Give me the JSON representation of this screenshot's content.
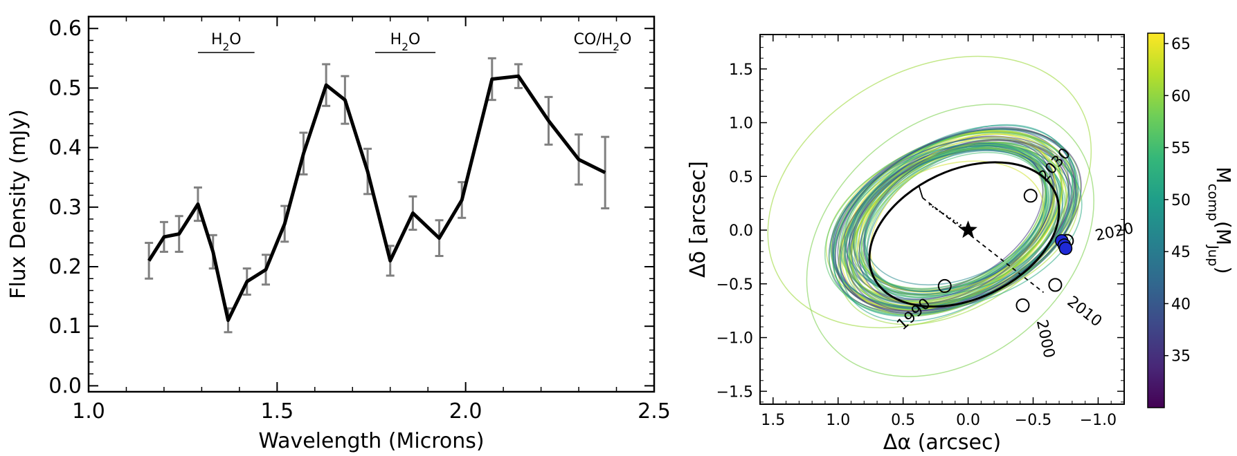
{
  "chart_data": [
    {
      "type": "line",
      "xlabel": "Wavelength (Microns)",
      "ylabel": "Flux Density (mJy)",
      "xlim": [
        1.0,
        2.5
      ],
      "ylim": [
        -0.01,
        0.62
      ],
      "xticks": [
        "1.0",
        "1.5",
        "2.0",
        "2.5"
      ],
      "yticks": [
        "0.0",
        "0.1",
        "0.2",
        "0.3",
        "0.4",
        "0.5",
        "0.6"
      ],
      "grid": false,
      "x": [
        1.16,
        1.2,
        1.24,
        1.29,
        1.33,
        1.37,
        1.42,
        1.47,
        1.52,
        1.57,
        1.63,
        1.68,
        1.74,
        1.8,
        1.86,
        1.93,
        1.99,
        2.07,
        2.14,
        2.22,
        2.3,
        2.37
      ],
      "y": [
        0.21,
        0.25,
        0.255,
        0.305,
        0.225,
        0.11,
        0.175,
        0.195,
        0.272,
        0.39,
        0.505,
        0.48,
        0.36,
        0.21,
        0.29,
        0.248,
        0.312,
        0.515,
        0.52,
        0.445,
        0.38,
        0.358
      ],
      "yerr": [
        0.03,
        0.025,
        0.03,
        0.028,
        0.028,
        0.02,
        0.022,
        0.025,
        0.03,
        0.035,
        0.035,
        0.04,
        0.038,
        0.025,
        0.028,
        0.03,
        0.03,
        0.035,
        0.02,
        0.04,
        0.042,
        0.06
      ],
      "annotations": [
        {
          "text": "H",
          "sub": "2",
          "rest": "O",
          "x0": 1.29,
          "x1": 1.44
        },
        {
          "text": "H",
          "sub": "2",
          "rest": "O",
          "x0": 1.76,
          "x1": 1.92
        },
        {
          "text": "CO/H",
          "sub": "2",
          "rest": "O",
          "x0": 2.3,
          "x1": 2.4
        }
      ],
      "line_color": "#000000",
      "errorbar_color": "#808080"
    },
    {
      "type": "scatter",
      "xlabel": "Δα (arcsec)",
      "ylabel": "Δδ [arcsec]",
      "xlim": [
        1.6,
        -1.2
      ],
      "ylim": [
        -1.62,
        1.82
      ],
      "xticks": [
        "1.5",
        "1.0",
        "0.5",
        "0.0",
        "−0.5",
        "−1.0"
      ],
      "yticks": [
        "1.5",
        "1.0",
        "0.5",
        "0.0",
        "−0.5",
        "−1.0",
        "−1.5"
      ],
      "colorbar": {
        "label_main": "M",
        "label_sub": "comp",
        "label_unit": "(M",
        "label_unit_sub": "Jup",
        "label_close": ")",
        "range": [
          30,
          66
        ],
        "ticks": [
          "35",
          "40",
          "45",
          "50",
          "55",
          "60",
          "65"
        ],
        "colormap": "viridis"
      },
      "orbit_center": [
        0.02,
        0.02
      ],
      "orbit_semi_axes": [
        0.72,
        0.66
      ],
      "orbit_rotation_deg": -25,
      "epochs": [
        {
          "label": "1990",
          "x": 0.18,
          "y": -0.52
        },
        {
          "label": "2000",
          "x": -0.42,
          "y": -0.7
        },
        {
          "label": "2010",
          "x": -0.67,
          "y": -0.51
        },
        {
          "label": "2020",
          "x": -0.76,
          "y": -0.1
        },
        {
          "label": "2030",
          "x": -0.48,
          "y": 0.32
        }
      ],
      "observed_points": [
        {
          "x": -0.72,
          "y": -0.1
        },
        {
          "x": -0.74,
          "y": -0.14
        },
        {
          "x": -0.75,
          "y": -0.17
        }
      ],
      "star": {
        "x": 0.0,
        "y": 0.0
      }
    }
  ]
}
